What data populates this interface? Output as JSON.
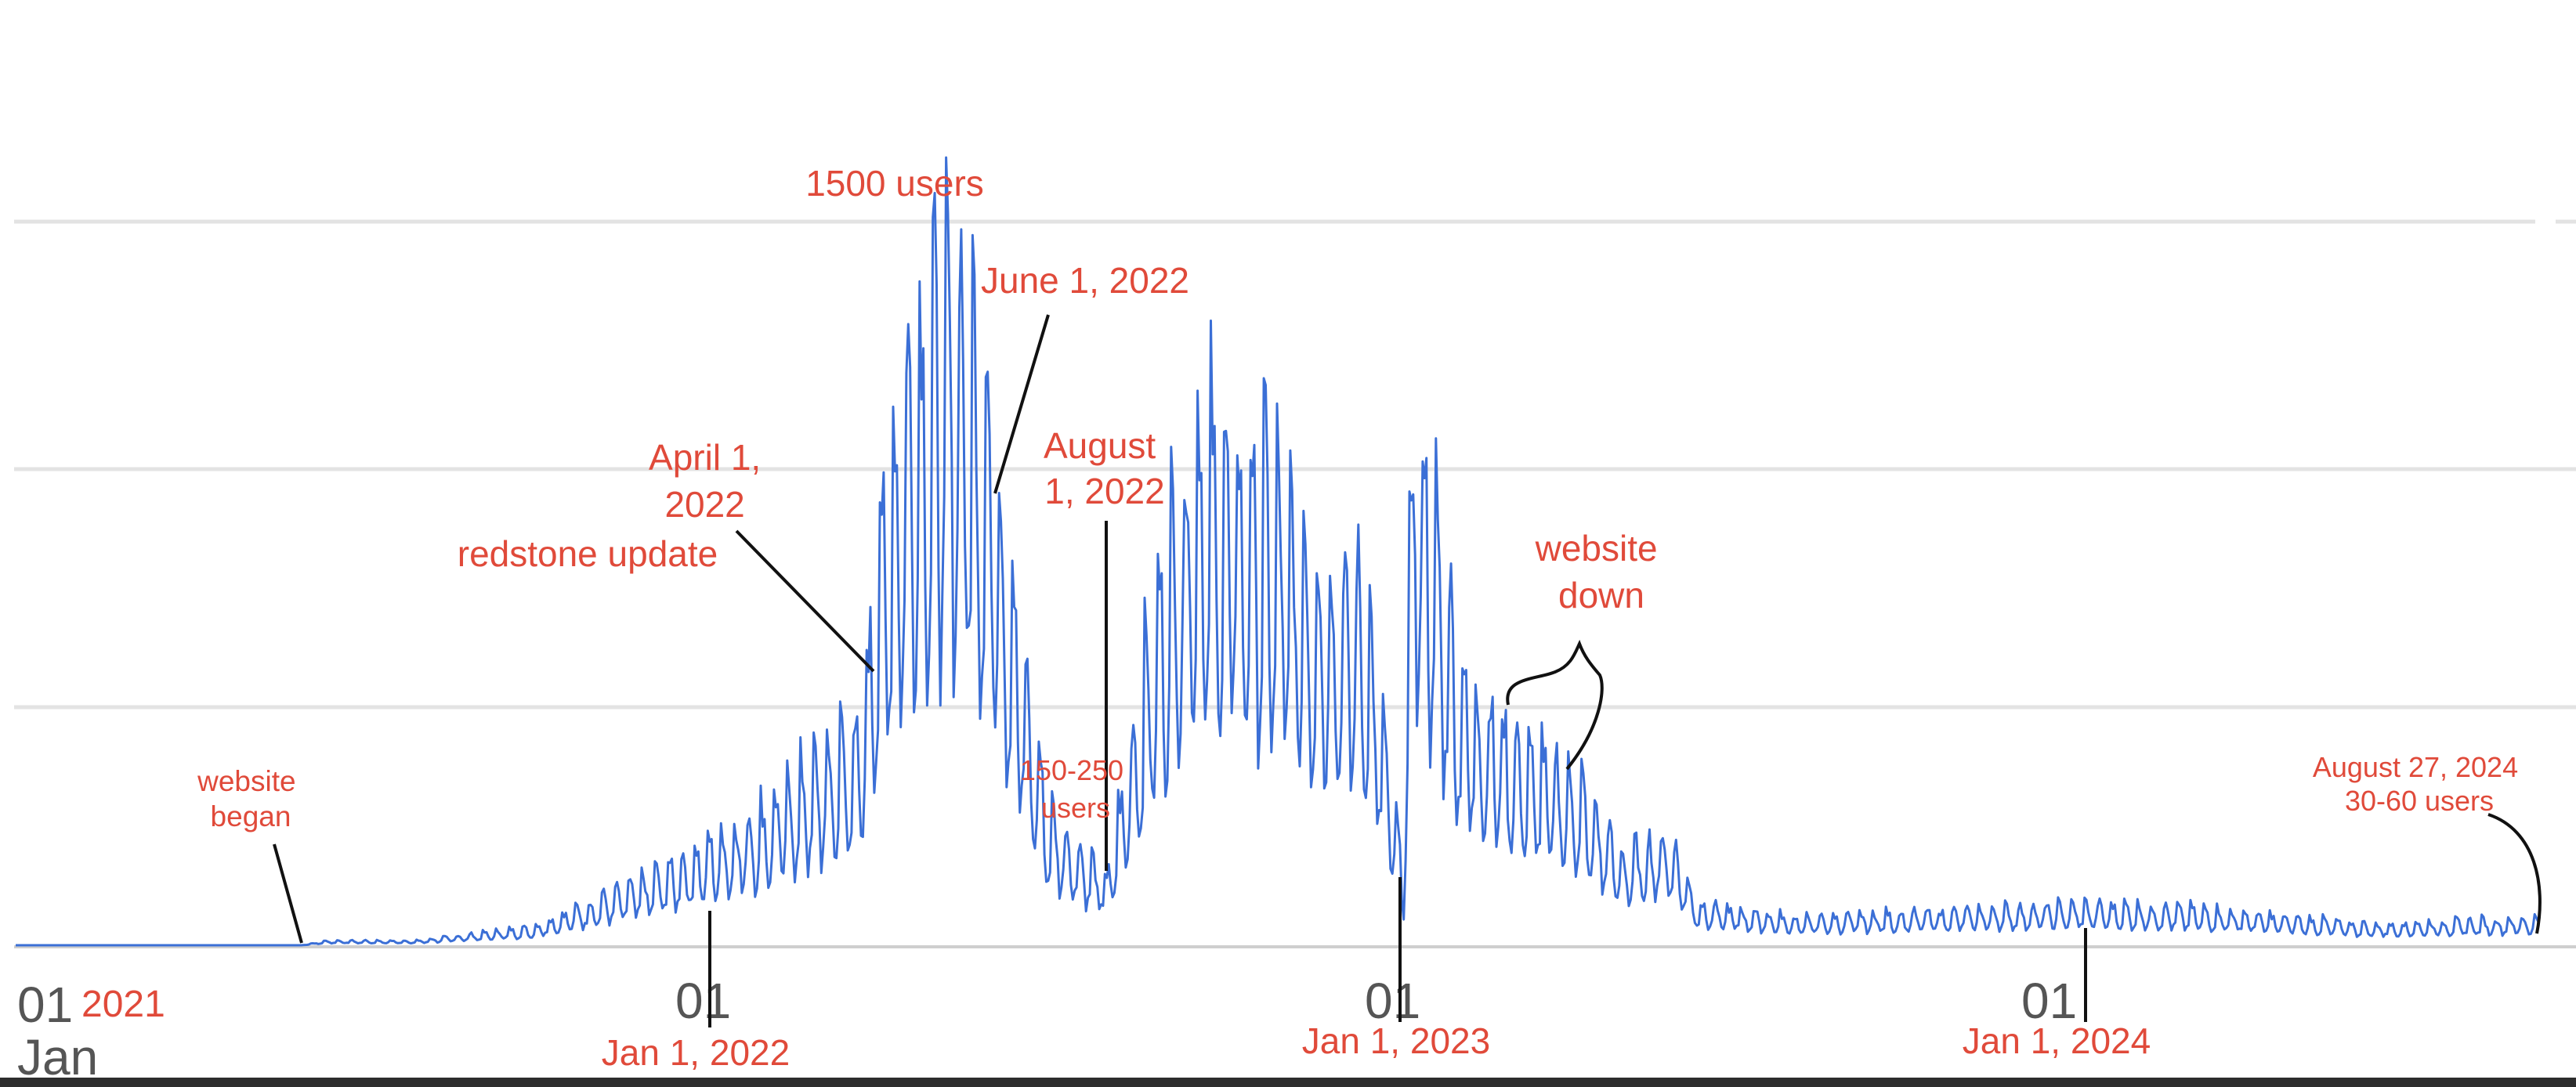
{
  "chart_data": {
    "type": "line",
    "x_range": [
      "2021-01-01",
      "2024-08-27"
    ],
    "grid": "horizontal",
    "legend": "none",
    "series_color": "#3b6fd6",
    "annotation_color": "#e04a3a",
    "x_ticks": [
      {
        "date": "2021-01-01",
        "day": "01",
        "month": "Jan",
        "year": "2021"
      },
      {
        "date": "2022-01-01",
        "day": "01"
      },
      {
        "date": "2023-01-01",
        "day": "01"
      },
      {
        "date": "2024-01-01",
        "day": "01"
      }
    ],
    "series": [
      {
        "values_note": "",
        "keypoints": [
          {
            "date": "2021-01-01",
            "value": 0
          },
          {
            "date": "2021-06-01",
            "value": 0
          },
          {
            "date": "2021-06-15",
            "value": 10
          },
          {
            "date": "2021-08-01",
            "value": 10
          },
          {
            "date": "2021-10-01",
            "value": 40
          },
          {
            "date": "2021-12-01",
            "value": 150
          },
          {
            "date": "2022-02-01",
            "value": 300
          },
          {
            "date": "2022-03-25",
            "value": 500
          },
          {
            "date": "2022-04-01",
            "value": 900
          },
          {
            "date": "2022-04-20",
            "value": 1350
          },
          {
            "date": "2022-05-15",
            "value": 1500
          },
          {
            "date": "2022-06-01",
            "value": 1200
          },
          {
            "date": "2022-06-15",
            "value": 700
          },
          {
            "date": "2022-07-01",
            "value": 300
          },
          {
            "date": "2022-08-01",
            "value": 150
          },
          {
            "date": "2022-08-20",
            "value": 600
          },
          {
            "date": "2022-09-15",
            "value": 1150
          },
          {
            "date": "2022-10-25",
            "value": 1050
          },
          {
            "date": "2022-11-20",
            "value": 850
          },
          {
            "date": "2022-12-15",
            "value": 800
          },
          {
            "date": "2023-01-05",
            "value": 150
          },
          {
            "date": "2023-01-10",
            "value": 1250
          },
          {
            "date": "2023-02-05",
            "value": 600
          },
          {
            "date": "2023-03-10",
            "value": 450
          },
          {
            "date": "2023-04-05",
            "value": 380
          },
          {
            "date": "2023-05-01",
            "value": 200
          },
          {
            "date": "2023-05-25",
            "value": 250
          },
          {
            "date": "2023-06-10",
            "value": 90
          },
          {
            "date": "2023-08-01",
            "value": 60
          },
          {
            "date": "2024-01-01",
            "value": 90
          },
          {
            "date": "2024-03-01",
            "value": 80
          },
          {
            "date": "2024-06-01",
            "value": 45
          },
          {
            "date": "2024-08-27",
            "value": 60
          }
        ]
      }
    ],
    "annotations": [
      {
        "text_lines": [
          "website",
          "began"
        ]
      },
      {
        "text_lines": [
          "April 1,",
          "2022",
          "redstone update"
        ]
      },
      {
        "text_lines": [
          "1500 users"
        ]
      },
      {
        "text_lines": [
          "June 1, 2022"
        ]
      },
      {
        "text_lines": [
          "August",
          "1, 2022"
        ]
      },
      {
        "text_lines": [
          "150-250",
          "users"
        ]
      },
      {
        "text_lines": [
          "website",
          "down"
        ]
      },
      {
        "text_lines": [
          "August 27, 2024",
          "30-60 users"
        ]
      },
      {
        "text_lines": [
          "Jan 1, 2022"
        ]
      },
      {
        "text_lines": [
          "Jan 1, 2023"
        ]
      },
      {
        "text_lines": [
          "Jan 1, 2024"
        ]
      }
    ]
  }
}
